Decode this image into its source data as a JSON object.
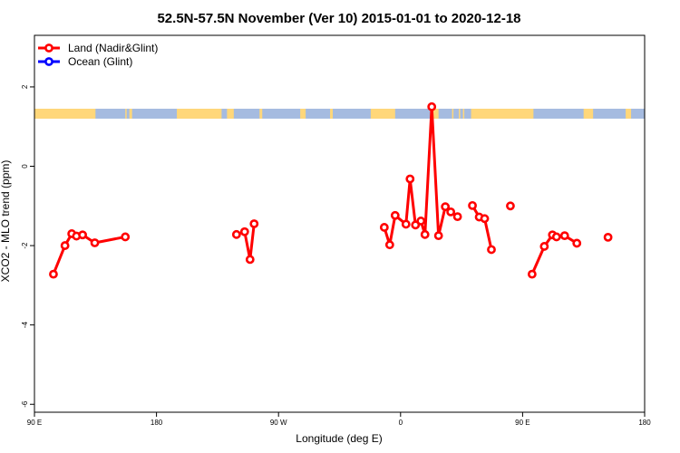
{
  "chart_data": {
    "type": "line",
    "title": "52.5N-57.5N November (Ver 10)   2015-01-01 to 2020-12-18",
    "xlabel": "Longitude (deg E)",
    "ylabel": "XCO2 - MLO trend (ppm)",
    "xlim": [
      -180,
      270
    ],
    "ylim": [
      -6.2,
      3.3
    ],
    "x_ticks": [
      {
        "value": -180,
        "label": "90 E"
      },
      {
        "value": -90,
        "label": "180"
      },
      {
        "value": 0,
        "label": "90 W"
      },
      {
        "value": 90,
        "label": "0"
      },
      {
        "value": 180,
        "label": "90 E"
      },
      {
        "value": 270,
        "label": "180"
      }
    ],
    "y_ticks": [
      {
        "value": 2,
        "label": "2"
      },
      {
        "value": 0,
        "label": "0"
      },
      {
        "value": -2,
        "label": "-2"
      },
      {
        "value": -4,
        "label": "-4"
      },
      {
        "value": -6,
        "label": "-6"
      }
    ],
    "legend": {
      "position": "top-left",
      "entries": [
        {
          "label": "Land (Nadir&Glint)",
          "color": "#ff0000"
        },
        {
          "label": "Ocean (Glint)",
          "color": "#0000ff"
        }
      ]
    },
    "land_ocean_strip": {
      "y_range": [
        1.2,
        1.45
      ],
      "ocean_color": "#a5bbe0",
      "land_color": "#ffd77a",
      "land_segments": [
        [
          -180,
          -135
        ],
        [
          -113,
          -112
        ],
        [
          -110,
          -108
        ],
        [
          -75,
          -42
        ],
        [
          -38,
          -33
        ],
        [
          -14,
          -12
        ],
        [
          16,
          20
        ],
        [
          38,
          40
        ],
        [
          68,
          86
        ],
        [
          113,
          118
        ],
        [
          128,
          129
        ],
        [
          133,
          134
        ],
        [
          136,
          137
        ],
        [
          142,
          188
        ],
        [
          225,
          232
        ],
        [
          256,
          260
        ]
      ]
    },
    "series": [
      {
        "name": "Land (Nadir&Glint)",
        "color": "#ff0000",
        "segments": [
          [
            [
              -166,
              -2.72
            ],
            [
              -157.5,
              -2.0
            ],
            [
              -152.5,
              -1.7
            ],
            [
              -149,
              -1.76
            ],
            [
              -144.5,
              -1.73
            ],
            [
              -135.5,
              -1.93
            ],
            [
              -113,
              -1.78
            ]
          ],
          [
            [
              -31,
              -1.72
            ],
            [
              -25,
              -1.65
            ],
            [
              -21,
              -2.35
            ],
            [
              -18,
              -1.45
            ]
          ],
          [
            [
              78,
              -1.54
            ],
            [
              82,
              -1.98
            ],
            [
              86,
              -1.24
            ],
            [
              94,
              -1.46
            ],
            [
              97,
              -0.32
            ],
            [
              101,
              -1.48
            ],
            [
              105,
              -1.38
            ],
            [
              108,
              -1.72
            ],
            [
              113,
              1.5
            ],
            [
              118,
              -1.75
            ],
            [
              123,
              -1.02
            ],
            [
              127,
              -1.15
            ],
            [
              132,
              -1.27
            ]
          ],
          [
            [
              143,
              -0.99
            ],
            [
              148,
              -1.28
            ],
            [
              152,
              -1.32
            ],
            [
              157,
              -2.1
            ]
          ],
          [
            [
              171,
              -1.0
            ]
          ],
          [
            [
              187,
              -2.72
            ],
            [
              196,
              -2.02
            ],
            [
              202,
              -1.73
            ],
            [
              205,
              -1.78
            ],
            [
              211,
              -1.75
            ],
            [
              220,
              -1.94
            ]
          ],
          [
            [
              243,
              -1.79
            ]
          ]
        ]
      }
    ]
  }
}
